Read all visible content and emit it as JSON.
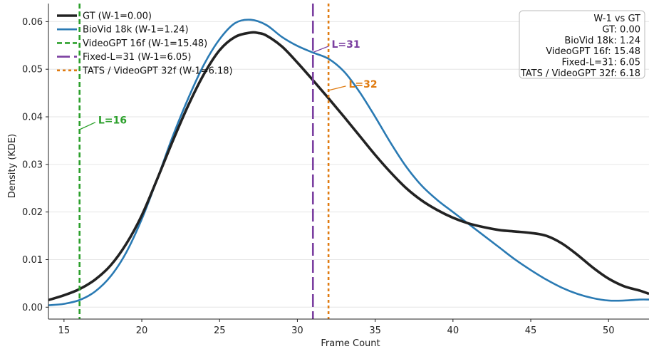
{
  "chart_data": {
    "type": "line",
    "xlabel": "Frame Count",
    "ylabel": "Density (KDE)",
    "xlim": [
      14,
      52.6
    ],
    "ylim": [
      -0.0025,
      0.0638
    ],
    "xticks": [
      "15",
      "20",
      "25",
      "30",
      "35",
      "40",
      "45",
      "50"
    ],
    "yticks": [
      "0.00",
      "0.01",
      "0.02",
      "0.03",
      "0.04",
      "0.05",
      "0.06"
    ],
    "grid": "horizontal",
    "legend_position": "upper-left",
    "series": [
      {
        "name": "GT (W-1=0.00)",
        "color": "#222222",
        "style": "solid",
        "x": [
          14,
          15,
          16,
          17,
          18,
          19,
          20,
          21,
          22,
          23,
          24,
          25,
          26,
          27,
          27.5,
          28,
          29,
          30,
          31,
          32,
          33,
          34,
          35,
          36,
          37,
          38,
          39,
          40,
          41,
          42,
          43,
          44,
          45,
          46,
          47,
          48,
          49,
          50,
          51,
          52,
          52.6
        ],
        "y": [
          0.0015,
          0.0025,
          0.0038,
          0.0058,
          0.0088,
          0.0133,
          0.0193,
          0.027,
          0.035,
          0.0425,
          0.049,
          0.054,
          0.0568,
          0.0577,
          0.0576,
          0.0571,
          0.0548,
          0.0514,
          0.0477,
          0.0439,
          0.04,
          0.036,
          0.032,
          0.0283,
          0.025,
          0.0224,
          0.0204,
          0.0188,
          0.0176,
          0.0168,
          0.0162,
          0.0159,
          0.0156,
          0.015,
          0.0134,
          0.011,
          0.0083,
          0.006,
          0.0044,
          0.0035,
          0.0028
        ]
      },
      {
        "name": "BioVid 18k (W-1=1.24)",
        "color": "#2a7ab3",
        "style": "solid",
        "x": [
          14,
          15,
          16,
          17,
          18,
          19,
          20,
          21,
          22,
          23,
          24,
          25,
          26,
          27,
          28,
          29,
          30,
          31,
          32,
          33,
          34,
          35,
          36,
          37,
          38,
          39,
          40,
          41,
          42,
          43,
          44,
          45,
          46,
          47,
          48,
          49,
          50,
          51,
          52,
          52.6
        ],
        "y": [
          0.0004,
          0.0007,
          0.0015,
          0.0033,
          0.0065,
          0.0115,
          0.0185,
          0.027,
          0.036,
          0.044,
          0.051,
          0.0563,
          0.0597,
          0.0604,
          0.0593,
          0.0568,
          0.0549,
          0.0535,
          0.0522,
          0.0495,
          0.0452,
          0.04,
          0.0345,
          0.0295,
          0.0255,
          0.0225,
          0.02,
          0.0175,
          0.015,
          0.0125,
          0.01,
          0.0078,
          0.0058,
          0.0041,
          0.0028,
          0.0019,
          0.0014,
          0.0014,
          0.0016,
          0.0016
        ]
      }
    ],
    "vlines": [
      {
        "name": "VideoGPT 16f (W-1=15.48)",
        "x": 16,
        "color": "#2ca02c",
        "dash": "7,4",
        "label": "L=16",
        "label_at": [
          17.2,
          0.0393
        ],
        "arrow_to": [
          16.05,
          0.0374
        ]
      },
      {
        "name": "Fixed-L=31 (W-1=6.05)",
        "x": 31,
        "color": "#7b3fa0",
        "dash": "18,6",
        "label": "L=31",
        "label_at": [
          32.2,
          0.0553
        ],
        "arrow_to": [
          31.05,
          0.0536
        ]
      },
      {
        "name": "TATS / VideoGPT 32f (W-1=6.18)",
        "x": 32,
        "color": "#e07b10",
        "dash": "4,4",
        "label": "L=32",
        "label_at": [
          33.3,
          0.0469
        ],
        "arrow_to": [
          32.05,
          0.0456
        ]
      }
    ],
    "info_box": {
      "title": "W-1 vs GT",
      "lines": [
        "GT: 0.00",
        "BioVid 18k: 1.24",
        "VideoGPT 16f: 15.48",
        "Fixed-L=31: 6.05",
        "TATS / VideoGPT 32f: 6.18"
      ]
    }
  }
}
